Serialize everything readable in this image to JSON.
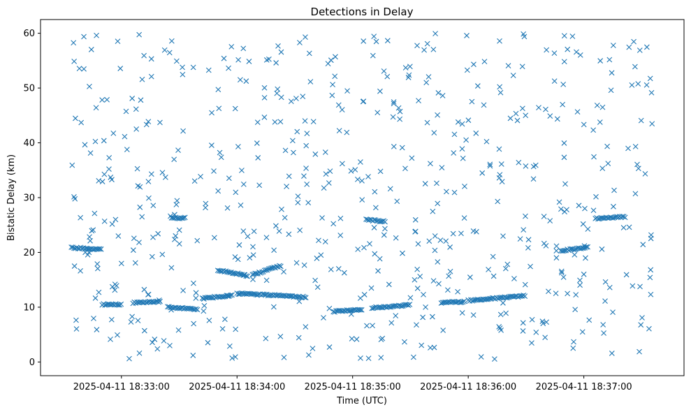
{
  "chart_data": {
    "type": "scatter",
    "title": "Detections in Delay",
    "xlabel": "Time (UTC)",
    "ylabel": "Bistatic Delay (km)",
    "marker": "x",
    "color": "#1f77b4",
    "grid": false,
    "x_start": "2025-04-11 18:32:34",
    "x_end": "2025-04-11 18:37:36",
    "xlim": [
      "2025-04-11 18:32:18",
      "2025-04-11 18:37:52"
    ],
    "ylim": [
      -2.5,
      62.5
    ],
    "x_ticks": [
      "2025-04-11 18:33:00",
      "2025-04-11 18:34:00",
      "2025-04-11 18:35:00",
      "2025-04-11 18:36:00",
      "2025-04-11 18:37:00"
    ],
    "y_ticks": [
      "0",
      "10",
      "20",
      "30",
      "40",
      "50",
      "60"
    ],
    "tracks": [
      {
        "t0": "18:32:34",
        "t1": "18:32:50",
        "d0": 20.9,
        "d1": 20.5
      },
      {
        "t0": "18:32:50",
        "t1": "18:33:00",
        "d0": 10.5,
        "d1": 10.5
      },
      {
        "t0": "18:33:06",
        "t1": "18:33:20",
        "d0": 10.8,
        "d1": 11.0
      },
      {
        "t0": "18:33:24",
        "t1": "18:33:40",
        "d0": 10.0,
        "d1": 9.6
      },
      {
        "t0": "18:33:26",
        "t1": "18:33:33",
        "d0": 26.3,
        "d1": 26.3
      },
      {
        "t0": "18:33:42",
        "t1": "18:33:58",
        "d0": 11.6,
        "d1": 12.2
      },
      {
        "t0": "18:33:50",
        "t1": "18:34:06",
        "d0": 16.8,
        "d1": 15.7
      },
      {
        "t0": "18:34:00",
        "t1": "18:34:28",
        "d0": 12.5,
        "d1": 12.0
      },
      {
        "t0": "18:34:08",
        "t1": "18:34:23",
        "d0": 15.9,
        "d1": 17.6
      },
      {
        "t0": "18:34:28",
        "t1": "18:34:36",
        "d0": 12.0,
        "d1": 11.8
      },
      {
        "t0": "18:34:50",
        "t1": "18:35:05",
        "d0": 9.2,
        "d1": 9.6
      },
      {
        "t0": "18:35:10",
        "t1": "18:35:30",
        "d0": 9.9,
        "d1": 10.4
      },
      {
        "t0": "18:35:07",
        "t1": "18:35:17",
        "d0": 26.0,
        "d1": 25.6
      },
      {
        "t0": "18:35:46",
        "t1": "18:35:58",
        "d0": 10.8,
        "d1": 11.0
      },
      {
        "t0": "18:36:00",
        "t1": "18:36:30",
        "d0": 11.2,
        "d1": 12.1
      },
      {
        "t0": "18:36:48",
        "t1": "18:37:02",
        "d0": 20.3,
        "d1": 20.9
      },
      {
        "t0": "18:37:06",
        "t1": "18:37:22",
        "d0": 26.2,
        "d1": 26.5
      }
    ],
    "random_detections": 600
  }
}
